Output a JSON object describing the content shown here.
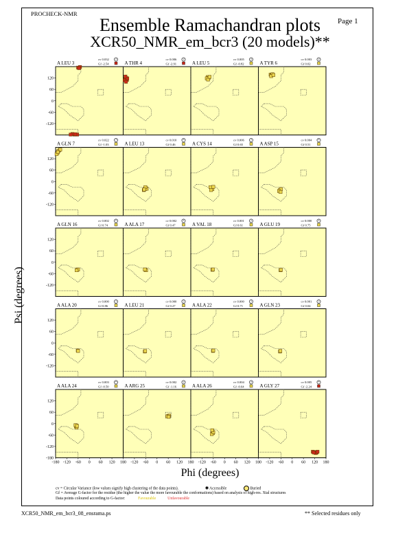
{
  "header": {
    "program": "PROCHECK-NMR",
    "page_label": "Page 1",
    "title_line1": "Ensemble Ramachandran plots",
    "title_line2": "XCR50_NMR_em_bcr3 (20 models)**"
  },
  "colors": {
    "panel_bg": "#ffffb8",
    "region_outline": "#333333",
    "favourable": "#e8d44d",
    "unfavourable": "#cc2a1a",
    "point_outline": "#5a3a00"
  },
  "chart_data": {
    "type": "scatter",
    "xlabel": "Phi (degrees)",
    "ylabel": "Psi (degrees)",
    "xlim": [
      -180,
      180
    ],
    "ylim": [
      -180,
      180
    ],
    "x_ticks": [
      "-180",
      "-120",
      "-60",
      "0",
      "60",
      "120",
      "180"
    ],
    "y_ticks": [
      "120",
      "60",
      "0",
      "-60",
      "-120"
    ],
    "bottom_y_tick": "-180",
    "panels": [
      {
        "residue": "A LEU 3",
        "cv": "cv 0.032",
        "gf": "Gf -2.54",
        "symbol": "?",
        "gf_color": "unfavourable",
        "points": [
          [
            -60,
            175
          ],
          [
            -50,
            178
          ],
          [
            -55,
            172
          ],
          [
            -65,
            -178
          ],
          [
            -80,
            -178
          ],
          [
            -90,
            -175
          ],
          [
            -100,
            -178
          ],
          [
            -75,
            -176
          ]
        ]
      },
      {
        "residue": "A THR 4",
        "cv": "cv 0.006",
        "gf": "Gf -2.91",
        "symbol": "?",
        "gf_color": "unfavourable",
        "points": [
          [
            -165,
            120
          ],
          [
            -170,
            115
          ],
          [
            -160,
            110
          ],
          [
            -172,
            108
          ],
          [
            -165,
            100
          ],
          [
            -158,
            118
          ],
          [
            -168,
            128
          ]
        ]
      },
      {
        "residue": "A LEU 5",
        "cv": "cv 0.005",
        "gf": "Gf -0.82",
        "symbol": "?",
        "gf_color": "favourable",
        "points": [
          [
            -90,
            125
          ],
          [
            -85,
            120
          ],
          [
            -95,
            118
          ],
          [
            -88,
            112
          ],
          [
            -80,
            126
          ]
        ]
      },
      {
        "residue": "A TYR 6",
        "cv": "cv 0.003",
        "gf": "Gf 0.02",
        "symbol": "?",
        "gf_color": "favourable",
        "points": [
          [
            -115,
            138
          ],
          [
            -110,
            135
          ],
          [
            -105,
            140
          ],
          [
            -112,
            130
          ],
          [
            -100,
            136
          ]
        ]
      },
      {
        "residue": "A GLN 7",
        "cv": "cv 0.022",
        "gf": "Gf -1.03",
        "symbol": "?",
        "gf_color": "favourable",
        "points": [
          [
            -165,
            160
          ],
          [
            -170,
            150
          ],
          [
            -175,
            145
          ],
          [
            -160,
            165
          ],
          [
            -155,
            168
          ],
          [
            -168,
            155
          ]
        ]
      },
      {
        "residue": "A LEU 13",
        "cv": "cv 0.010",
        "gf": "Gf 0.46",
        "symbol": "*",
        "gf_color": "favourable",
        "points": [
          [
            -65,
            -40
          ],
          [
            -60,
            -35
          ],
          [
            -70,
            -45
          ],
          [
            -55,
            -38
          ],
          [
            -62,
            -30
          ],
          [
            -68,
            -42
          ]
        ]
      },
      {
        "residue": "A CYS 14",
        "cv": "cv 0.006",
        "gf": "Gf 0.65",
        "symbol": "?",
        "gf_color": "favourable",
        "points": [
          [
            -70,
            -35
          ],
          [
            -65,
            -40
          ],
          [
            -75,
            -30
          ],
          [
            -72,
            -45
          ],
          [
            -60,
            -28
          ]
        ]
      },
      {
        "residue": "A ASP 15",
        "cv": "cv 0.004",
        "gf": "Gf 0.51",
        "symbol": "*",
        "gf_color": "favourable",
        "points": [
          [
            -65,
            -45
          ],
          [
            -60,
            -40
          ],
          [
            -70,
            -50
          ],
          [
            -62,
            -55
          ]
        ]
      },
      {
        "residue": "A GLN 16",
        "cv": "cv 0.002",
        "gf": "Gf 0.74",
        "symbol": "*",
        "gf_color": "favourable",
        "points": [
          [
            -65,
            -40
          ],
          [
            -60,
            -38
          ],
          [
            -68,
            -42
          ]
        ]
      },
      {
        "residue": "A ALA 17",
        "cv": "cv 0.002",
        "gf": "Gf 0.47",
        "symbol": "*",
        "gf_color": "favourable",
        "points": [
          [
            -62,
            -40
          ],
          [
            -58,
            -42
          ],
          [
            -65,
            -38
          ]
        ]
      },
      {
        "residue": "A VAL 18",
        "cv": "cv 0.001",
        "gf": "Gf 0.61",
        "symbol": "?",
        "gf_color": "favourable",
        "points": [
          [
            -65,
            -40
          ],
          [
            -62,
            -38
          ]
        ]
      },
      {
        "residue": "A GLU 19",
        "cv": "cv 0.000",
        "gf": "Gf 0.75",
        "symbol": "*",
        "gf_color": "favourable",
        "points": [
          [
            -62,
            -42
          ],
          [
            -60,
            -40
          ]
        ]
      },
      {
        "residue": "A ALA 20",
        "cv": "cv 0.000",
        "gf": "Gf 0.86",
        "symbol": "?",
        "gf_color": "favourable",
        "points": [
          [
            -62,
            -40
          ],
          [
            -60,
            -42
          ]
        ]
      },
      {
        "residue": "A LEU 21",
        "cv": "cv 0.000",
        "gf": "Gf 0.27",
        "symbol": "?",
        "gf_color": "favourable",
        "points": [
          [
            -65,
            -45
          ],
          [
            -63,
            -43
          ]
        ]
      },
      {
        "residue": "A ALA 22",
        "cv": "cv 0.000",
        "gf": "Gf 0.71",
        "symbol": "?",
        "gf_color": "favourable",
        "points": [
          [
            -62,
            -42
          ],
          [
            -60,
            -40
          ]
        ]
      },
      {
        "residue": "A GLN 23",
        "cv": "cv 0.001",
        "gf": "Gf 0.04",
        "symbol": "?",
        "gf_color": "favourable",
        "points": [
          [
            -65,
            -45
          ],
          [
            -63,
            -42
          ]
        ]
      },
      {
        "residue": "A ALA 24",
        "cv": "cv 0.003",
        "gf": "Gf -0.50",
        "symbol": "*",
        "gf_color": "favourable",
        "points": [
          [
            -70,
            -10
          ],
          [
            -72,
            -15
          ],
          [
            -68,
            -20
          ],
          [
            -74,
            -8
          ],
          [
            -66,
            -12
          ]
        ]
      },
      {
        "residue": "A ARG 25",
        "cv": "cv 0.002",
        "gf": "Gf -1.16",
        "symbol": "?",
        "gf_color": "favourable",
        "points": [
          [
            60,
            40
          ],
          [
            65,
            42
          ],
          [
            55,
            38
          ],
          [
            62,
            36
          ]
        ]
      },
      {
        "residue": "A ALA 26",
        "cv": "cv 0.004",
        "gf": "Gf -0.64",
        "symbol": "?",
        "gf_color": "favourable",
        "points": [
          [
            -65,
            -40
          ],
          [
            -62,
            -50
          ],
          [
            -68,
            -55
          ],
          [
            -60,
            -45
          ],
          [
            -66,
            -35
          ]
        ]
      },
      {
        "residue": "A GLY 27",
        "cv": "cv 0.005",
        "gf": "Gf -2.24",
        "symbol": "*",
        "gf_color": "unfavourable",
        "points": [
          [
            120,
            -150
          ],
          [
            130,
            -152
          ],
          [
            110,
            -148
          ],
          [
            125,
            -155
          ],
          [
            135,
            -148
          ],
          [
            115,
            -152
          ]
        ]
      }
    ]
  },
  "footer": {
    "cv_note": "cv = Circular Variance (low values signify high clustering of the data points).",
    "accessible": "Accessible",
    "buried": "Buried",
    "gf_note": "Gf = Average G-factor for the residue (the higher the value the more favourable the conformations) based on analysis of high-res. Xtal structures",
    "colour_note": "Data points coloured according to G-factor:",
    "favourable": "Favourable",
    "unfavourable": "Unfavourable",
    "filename": "XCR50_NMR_em_bcr3_08_ensrama.ps",
    "selected_note": "** Selected residues only"
  }
}
